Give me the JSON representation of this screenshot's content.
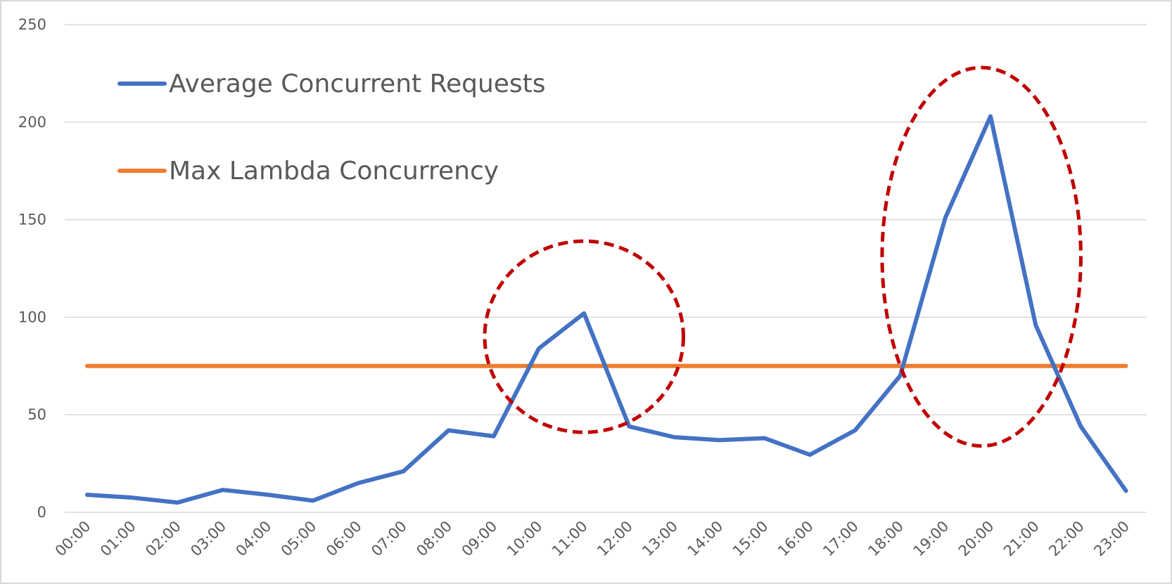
{
  "chart_data": {
    "type": "line",
    "title": "",
    "xlabel": "",
    "ylabel": "",
    "categories": [
      "00:00",
      "01:00",
      "02:00",
      "03:00",
      "04:00",
      "05:00",
      "06:00",
      "07:00",
      "08:00",
      "09:00",
      "10:00",
      "11:00",
      "12:00",
      "13:00",
      "14:00",
      "15:00",
      "16:00",
      "17:00",
      "18:00",
      "19:00",
      "20:00",
      "21:00",
      "22:00",
      "23:00"
    ],
    "yticks": [
      "0",
      "50",
      "100",
      "150",
      "200",
      "250"
    ],
    "ylim": [
      0,
      250
    ],
    "grid": true,
    "legend_position": "top-left",
    "series": [
      {
        "name": "Average Concurrent Requests",
        "color": "#4472c4",
        "values": [
          9,
          7.5,
          5,
          11.5,
          9,
          6,
          15,
          21,
          42,
          39,
          84,
          102,
          44,
          38.5,
          37,
          38,
          29.5,
          42,
          70,
          151,
          203,
          96,
          44,
          11
        ]
      },
      {
        "name": "Max Lambda Concurrency",
        "color": "#ed7d31",
        "values": [
          75,
          75,
          75,
          75,
          75,
          75,
          75,
          75,
          75,
          75,
          75,
          75,
          75,
          75,
          75,
          75,
          75,
          75,
          75,
          75,
          75,
          75,
          75,
          75
        ]
      }
    ],
    "annotations": [
      {
        "shape": "dashed-ellipse",
        "color": "#c00000",
        "x_center": 11,
        "y_center": 90,
        "x_radius": 2.2,
        "y_radius": 49
      },
      {
        "shape": "dashed-ellipse",
        "color": "#c00000",
        "x_center": 19.8,
        "y_center": 131,
        "x_radius": 2.2,
        "y_radius": 97
      }
    ]
  }
}
